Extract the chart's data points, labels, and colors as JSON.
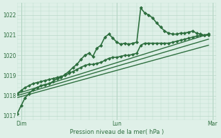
{
  "bg_color": "#dff0e8",
  "grid_color": "#b8d8c8",
  "line_color": "#2d6e3e",
  "marker_color": "#2d6e3e",
  "xlabel": "Pression niveau de la mer( hPa )",
  "ylim": [
    1016.8,
    1022.6
  ],
  "yticks": [
    1017,
    1018,
    1019,
    1020,
    1021,
    1022
  ],
  "xlim": [
    0,
    50
  ],
  "day_labels": [
    "Dim",
    "Lun",
    "Mar"
  ],
  "day_positions": [
    1,
    25,
    49
  ],
  "series": [
    {
      "x": [
        0,
        1,
        2,
        3,
        4,
        5,
        6,
        7,
        8,
        9,
        10,
        11,
        12,
        13,
        14,
        15,
        16,
        17,
        18,
        19,
        20,
        21,
        22,
        23,
        24,
        25,
        26,
        27,
        28,
        29,
        30,
        31,
        32,
        33,
        34,
        35,
        36,
        37,
        38,
        39,
        40,
        41,
        42,
        43,
        44,
        45,
        46,
        47,
        48
      ],
      "y": [
        1017.1,
        1017.5,
        1017.9,
        1018.1,
        1018.3,
        1018.4,
        1018.5,
        1018.55,
        1018.6,
        1018.7,
        1018.85,
        1018.9,
        1019.05,
        1019.2,
        1019.4,
        1019.55,
        1019.8,
        1020.0,
        1020.1,
        1019.95,
        1020.35,
        1020.5,
        1020.9,
        1021.05,
        1020.85,
        1020.65,
        1020.55,
        1020.6,
        1020.55,
        1020.6,
        1020.65,
        1022.35,
        1022.1,
        1022.0,
        1021.85,
        1021.6,
        1021.4,
        1021.2,
        1021.1,
        1021.05,
        1021.05,
        1021.1,
        1021.1,
        1021.15,
        1021.2,
        1021.1,
        1021.05,
        1021.0,
        1021.05
      ],
      "lw": 1.2,
      "marker": "D",
      "ms": 2.2,
      "zorder": 5
    },
    {
      "x": [
        0,
        1,
        2,
        3,
        4,
        5,
        6,
        7,
        8,
        9,
        10,
        11,
        12,
        13,
        14,
        15,
        16,
        17,
        18,
        19,
        20,
        21,
        22,
        23,
        24,
        25,
        26,
        27,
        28,
        29,
        30,
        31,
        32,
        33,
        34,
        35,
        36,
        37,
        38,
        39,
        40,
        41,
        42,
        43,
        44,
        45,
        46,
        47,
        48
      ],
      "y": [
        1018.1,
        1018.25,
        1018.4,
        1018.5,
        1018.6,
        1018.65,
        1018.7,
        1018.75,
        1018.8,
        1018.85,
        1018.9,
        1018.95,
        1019.0,
        1019.1,
        1019.2,
        1019.3,
        1019.4,
        1019.5,
        1019.55,
        1019.55,
        1019.6,
        1019.65,
        1019.75,
        1019.85,
        1019.9,
        1019.9,
        1019.95,
        1020.0,
        1020.0,
        1020.05,
        1020.1,
        1020.5,
        1020.6,
        1020.6,
        1020.6,
        1020.6,
        1020.6,
        1020.6,
        1020.6,
        1020.65,
        1020.7,
        1020.75,
        1020.8,
        1020.85,
        1020.9,
        1020.95,
        1021.0,
        1021.0,
        1021.0
      ],
      "lw": 1.2,
      "marker": "D",
      "ms": 2.0,
      "zorder": 4
    },
    {
      "x": [
        0,
        48
      ],
      "y": [
        1018.1,
        1021.05
      ],
      "lw": 1.0,
      "marker": null,
      "ms": 0,
      "zorder": 3
    },
    {
      "x": [
        0,
        48
      ],
      "y": [
        1018.0,
        1020.8
      ],
      "lw": 1.0,
      "marker": null,
      "ms": 0,
      "zorder": 3
    },
    {
      "x": [
        0,
        48
      ],
      "y": [
        1017.9,
        1020.5
      ],
      "lw": 1.0,
      "marker": null,
      "ms": 0,
      "zorder": 3
    }
  ]
}
